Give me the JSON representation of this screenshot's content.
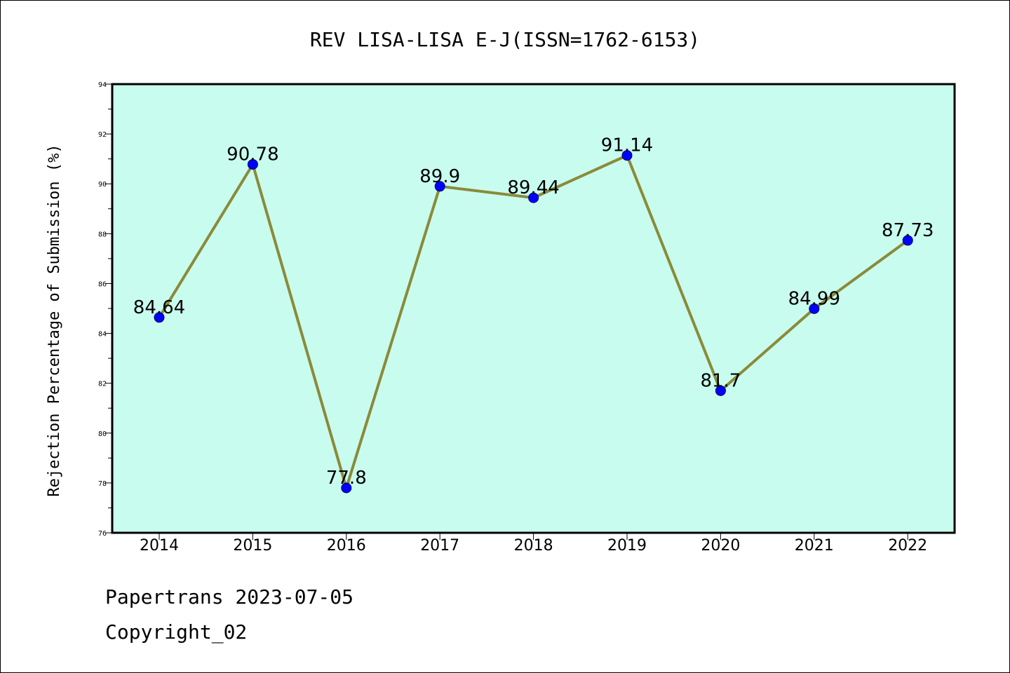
{
  "chart_data": {
    "type": "line",
    "title": "REV LISA-LISA E-J(ISSN=1762-6153)",
    "xlabel": "",
    "ylabel": "Rejection Percentage of Submission (%)",
    "categories": [
      "2014",
      "2015",
      "2016",
      "2017",
      "2018",
      "2019",
      "2020",
      "2021",
      "2022"
    ],
    "values": [
      84.64,
      90.78,
      77.8,
      89.9,
      89.44,
      91.14,
      81.7,
      84.99,
      87.73
    ],
    "data_labels": [
      "84.64",
      "90.78",
      "77.8",
      "89.9",
      "89.44",
      "91.14",
      "81.7",
      "84.99",
      "87.73"
    ],
    "ylim": [
      76,
      94
    ],
    "y_ticks": [
      "76",
      "78",
      "80",
      "82",
      "84",
      "86",
      "88",
      "90",
      "92",
      "94"
    ],
    "grid": false,
    "colors": {
      "plot_background": "#c8fcee",
      "line": "#8b8a3a",
      "marker": "#0000ff",
      "axis": "#000000"
    }
  },
  "footer": {
    "line1": "Papertrans 2023-07-05",
    "line2": "Copyright_02"
  }
}
